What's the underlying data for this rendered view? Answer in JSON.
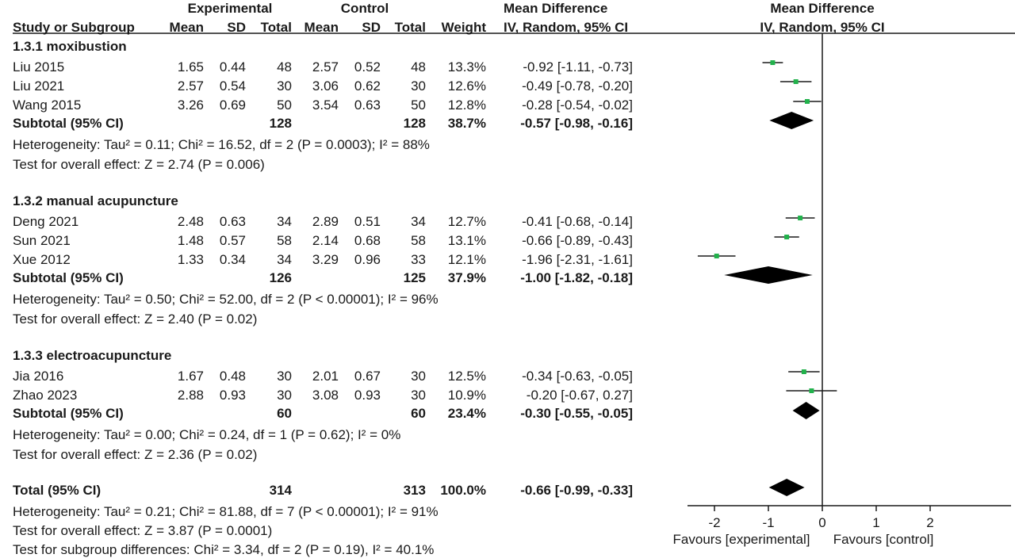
{
  "header": {
    "group_experimental": "Experimental",
    "group_control": "Control",
    "group_effect": "Mean Difference",
    "group_plot": "Mean Difference",
    "col_study": "Study or Subgroup",
    "col_mean_e": "Mean",
    "col_sd_e": "SD",
    "col_total_e": "Total",
    "col_mean_c": "Mean",
    "col_sd_c": "SD",
    "col_total_c": "Total",
    "col_weight": "Weight",
    "col_effect": "IV, Random, 95% CI",
    "col_plot": "IV, Random, 95% CI"
  },
  "subgroups": [
    {
      "title": "1.3.1 moxibustion",
      "studies": [
        {
          "name": "Liu 2015",
          "mean_e": "1.65",
          "sd_e": "0.44",
          "n_e": "48",
          "mean_c": "2.57",
          "sd_c": "0.52",
          "n_c": "48",
          "weight": "13.3%",
          "ci_text": "-0.92 [-1.11, -0.73]"
        },
        {
          "name": "Liu 2021",
          "mean_e": "2.57",
          "sd_e": "0.54",
          "n_e": "30",
          "mean_c": "3.06",
          "sd_c": "0.62",
          "n_c": "30",
          "weight": "12.6%",
          "ci_text": "-0.49 [-0.78, -0.20]"
        },
        {
          "name": "Wang 2015",
          "mean_e": "3.26",
          "sd_e": "0.69",
          "n_e": "50",
          "mean_c": "3.54",
          "sd_c": "0.63",
          "n_c": "50",
          "weight": "12.8%",
          "ci_text": "-0.28 [-0.54, -0.02]"
        }
      ],
      "subtotal": {
        "label": "Subtotal (95% CI)",
        "n_e": "128",
        "n_c": "128",
        "weight": "38.7%",
        "ci_text": "-0.57 [-0.98, -0.16]"
      },
      "heterogeneity": "Heterogeneity: Tau² = 0.11; Chi² = 16.52, df = 2 (P = 0.0003); I² = 88%",
      "overall": "Test for overall effect: Z = 2.74 (P = 0.006)"
    },
    {
      "title": "1.3.2 manual acupuncture",
      "studies": [
        {
          "name": "Deng  2021",
          "mean_e": "2.48",
          "sd_e": "0.63",
          "n_e": "34",
          "mean_c": "2.89",
          "sd_c": "0.51",
          "n_c": "34",
          "weight": "12.7%",
          "ci_text": "-0.41 [-0.68, -0.14]"
        },
        {
          "name": "Sun 2021",
          "mean_e": "1.48",
          "sd_e": "0.57",
          "n_e": "58",
          "mean_c": "2.14",
          "sd_c": "0.68",
          "n_c": "58",
          "weight": "13.1%",
          "ci_text": "-0.66 [-0.89, -0.43]"
        },
        {
          "name": "Xue 2012",
          "mean_e": "1.33",
          "sd_e": "0.34",
          "n_e": "34",
          "mean_c": "3.29",
          "sd_c": "0.96",
          "n_c": "33",
          "weight": "12.1%",
          "ci_text": "-1.96 [-2.31, -1.61]"
        }
      ],
      "subtotal": {
        "label": "Subtotal (95% CI)",
        "n_e": "126",
        "n_c": "125",
        "weight": "37.9%",
        "ci_text": "-1.00 [-1.82, -0.18]"
      },
      "heterogeneity": "Heterogeneity: Tau² = 0.50; Chi² = 52.00, df = 2 (P < 0.00001); I² = 96%",
      "overall": "Test for overall effect: Z = 2.40 (P = 0.02)"
    },
    {
      "title": "1.3.3 electroacupuncture",
      "studies": [
        {
          "name": "Jia  2016",
          "mean_e": "1.67",
          "sd_e": "0.48",
          "n_e": "30",
          "mean_c": "2.01",
          "sd_c": "0.67",
          "n_c": "30",
          "weight": "12.5%",
          "ci_text": "-0.34 [-0.63, -0.05]"
        },
        {
          "name": "Zhao 2023",
          "mean_e": "2.88",
          "sd_e": "0.93",
          "n_e": "30",
          "mean_c": "3.08",
          "sd_c": "0.93",
          "n_c": "30",
          "weight": "10.9%",
          "ci_text": "-0.20 [-0.67, 0.27]"
        }
      ],
      "subtotal": {
        "label": "Subtotal (95% CI)",
        "n_e": "60",
        "n_c": "60",
        "weight": "23.4%",
        "ci_text": "-0.30 [-0.55, -0.05]"
      },
      "heterogeneity": "Heterogeneity: Tau² = 0.00; Chi² = 0.24, df = 1 (P = 0.62); I² = 0%",
      "overall": "Test for overall effect: Z = 2.36 (P = 0.02)"
    }
  ],
  "total": {
    "label": "Total (95% CI)",
    "n_e": "314",
    "n_c": "313",
    "weight": "100.0%",
    "ci_text": "-0.66 [-0.99, -0.33]",
    "heterogeneity": "Heterogeneity: Tau² = 0.21; Chi² = 81.88, df = 7 (P < 0.00001); I² = 91%",
    "overall": "Test for overall effect: Z = 3.87 (P = 0.0001)",
    "subgroup_diff": "Test for subgroup differences: Chi² = 3.34, df = 2 (P = 0.19), I² = 40.1%"
  },
  "chart_data": {
    "type": "forest",
    "xlim": [
      -2.5,
      3.5
    ],
    "ticks": [
      -2,
      -1,
      0,
      1,
      2
    ],
    "tick_labels": [
      "-2",
      "-1",
      "0",
      "1",
      "2"
    ],
    "null_line": 0,
    "favours_left": "Favours [experimental]",
    "favours_right": "Favours [control]",
    "point_color": "#22b24c",
    "diamond_color": "#000000",
    "studies": [
      {
        "name": "Liu 2015",
        "md": -0.92,
        "lo": -1.11,
        "hi": -0.73
      },
      {
        "name": "Liu 2021",
        "md": -0.49,
        "lo": -0.78,
        "hi": -0.2
      },
      {
        "name": "Wang 2015",
        "md": -0.28,
        "lo": -0.54,
        "hi": -0.02
      },
      {
        "name": "Deng  2021",
        "md": -0.41,
        "lo": -0.68,
        "hi": -0.14
      },
      {
        "name": "Sun 2021",
        "md": -0.66,
        "lo": -0.89,
        "hi": -0.43
      },
      {
        "name": "Xue 2012",
        "md": -1.96,
        "lo": -2.31,
        "hi": -1.61
      },
      {
        "name": "Jia  2016",
        "md": -0.34,
        "lo": -0.63,
        "hi": -0.05
      },
      {
        "name": "Zhao 2023",
        "md": -0.2,
        "lo": -0.67,
        "hi": 0.27
      }
    ],
    "diamonds": [
      {
        "name": "Subtotal 1.3.1",
        "md": -0.57,
        "lo": -0.98,
        "hi": -0.16
      },
      {
        "name": "Subtotal 1.3.2",
        "md": -1.0,
        "lo": -1.82,
        "hi": -0.18
      },
      {
        "name": "Subtotal 1.3.3",
        "md": -0.3,
        "lo": -0.55,
        "hi": -0.05
      },
      {
        "name": "Total",
        "md": -0.66,
        "lo": -0.99,
        "hi": -0.33
      }
    ]
  }
}
